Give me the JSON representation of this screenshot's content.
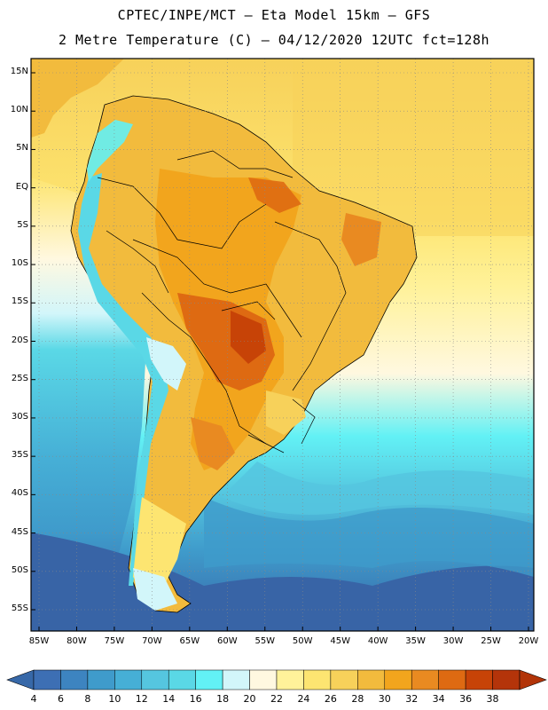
{
  "title": {
    "line1": "CPTEC/INPE/MCT –  Eta Model 15km – GFS",
    "line2": "2 Metre Temperature (C) – 04/12/2020 12UTC fct=128h"
  },
  "axes": {
    "lat_labels": [
      "15N",
      "10N",
      "5N",
      "EQ",
      "5S",
      "10S",
      "15S",
      "20S",
      "25S",
      "30S",
      "35S",
      "40S",
      "45S",
      "50S",
      "55S"
    ],
    "lon_labels": [
      "85W",
      "80W",
      "75W",
      "70W",
      "65W",
      "60W",
      "55W",
      "50W",
      "45W",
      "40W",
      "35W",
      "30W",
      "25W",
      "20W"
    ]
  },
  "colorbar": {
    "labels": [
      "4",
      "6",
      "8",
      "10",
      "12",
      "14",
      "16",
      "18",
      "20",
      "22",
      "24",
      "26",
      "28",
      "30",
      "32",
      "34",
      "36",
      "38"
    ],
    "colors": [
      "#3d6fb4",
      "#3d84c0",
      "#3f9bcb",
      "#46afd6",
      "#55c6df",
      "#5ad8e6",
      "#62f1f5",
      "#d2f6fa",
      "#fff8e0",
      "#fff29a",
      "#fde571",
      "#f7d15a",
      "#f2bb3d",
      "#f2a51d",
      "#e98a21",
      "#de6a12",
      "#c74307",
      "#b4340a"
    ],
    "under_color": "#3768a8",
    "over_color": "#b23408"
  },
  "colors": {
    "ocean_deep": "#3864a6",
    "ocean_mid": "#3f8fc6",
    "ocean_light": "#5ad8e6",
    "ocean_warm": "#fff29a",
    "land_hot": "#d9741c",
    "land_warm": "#f2a51d",
    "andes": "#5ad8e6"
  }
}
